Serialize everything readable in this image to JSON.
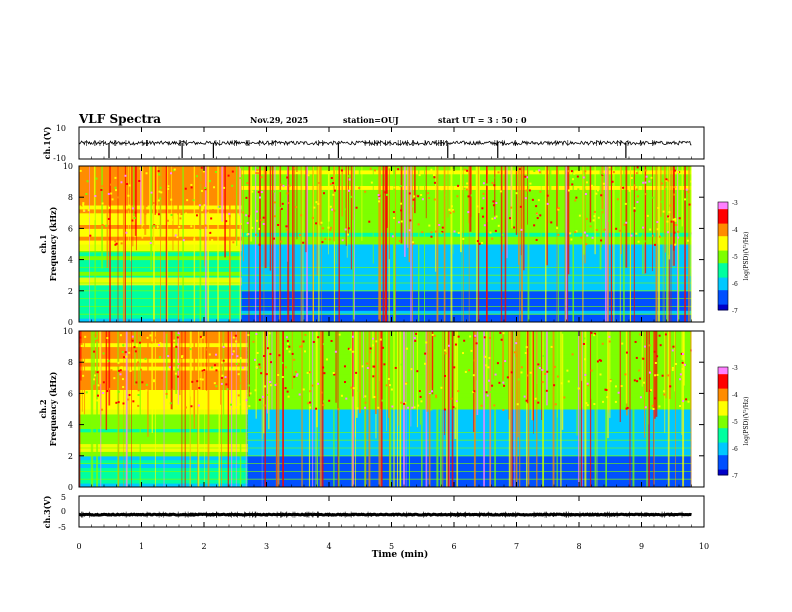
{
  "header": {
    "title": "VLF Spectra",
    "date": "Nov.29, 2025",
    "station": "station=OUJ",
    "start": "start  UT =  3 : 50 : 0"
  },
  "colors": {
    "colormap": [
      "#0000c8",
      "#0050ff",
      "#00c8ff",
      "#00ffa0",
      "#7dff00",
      "#ffff00",
      "#ff8c00",
      "#ff0000",
      "#ff80ff"
    ],
    "background_low": "#000060"
  },
  "chart_data": [
    {
      "type": "line",
      "ylabel": "ch.1(V)",
      "ylim": [
        -10,
        10
      ],
      "yticks": [
        "10",
        "-10"
      ],
      "baseline": 0,
      "noise_amplitude": 1.2,
      "spikes_min": [
        0.48,
        1.65,
        2.15,
        4.15,
        5.9,
        6.7,
        8.75
      ]
    },
    {
      "type": "heatmap",
      "ylabel": "ch.1\nFrequency (kHz)",
      "ylim": [
        0,
        10
      ],
      "yticks": [
        "0",
        "2",
        "4",
        "6",
        "8",
        "10"
      ],
      "colorbar": {
        "label": "log(PSD)(V²/Hz)",
        "range": [
          -7,
          -3
        ],
        "ticks": [
          "-3",
          "-4",
          "-5",
          "-6",
          "-7"
        ]
      },
      "hum_lines_khz": [
        0.5,
        1.0,
        1.5,
        2.0,
        2.5,
        3.0,
        3.5
      ],
      "early_bands_khz": [
        2.6,
        4.8
      ],
      "band_end_min": 2.6,
      "data_end_min": 9.8
    },
    {
      "type": "heatmap",
      "ylabel": "ch.2\nFrequency (kHz)",
      "ylim": [
        0,
        10
      ],
      "yticks": [
        "0",
        "2",
        "4",
        "6",
        "8",
        "10"
      ],
      "colorbar": {
        "label": "log(PSD)(V²/Hz)",
        "range": [
          -7,
          -3
        ],
        "ticks": [
          "-3",
          "-4",
          "-5",
          "-6",
          "-7"
        ]
      },
      "hum_lines_khz": [
        0.5,
        1.0,
        1.5,
        2.0,
        2.5,
        3.0,
        3.5
      ],
      "early_bands_khz": [
        2.5,
        4.9
      ],
      "band_end_min": 2.7,
      "data_end_min": 9.8
    },
    {
      "type": "line",
      "ylabel": "ch.3(V)",
      "ylim": [
        -5,
        5
      ],
      "yticks": [
        "5",
        "0",
        "-5"
      ],
      "baseline": -1,
      "noise_amplitude": 0.15
    }
  ],
  "xaxis": {
    "label": "Time (min)",
    "range": [
      0,
      10
    ],
    "ticks": [
      "0",
      "1",
      "2",
      "3",
      "4",
      "5",
      "6",
      "7",
      "8",
      "9",
      "10"
    ]
  }
}
